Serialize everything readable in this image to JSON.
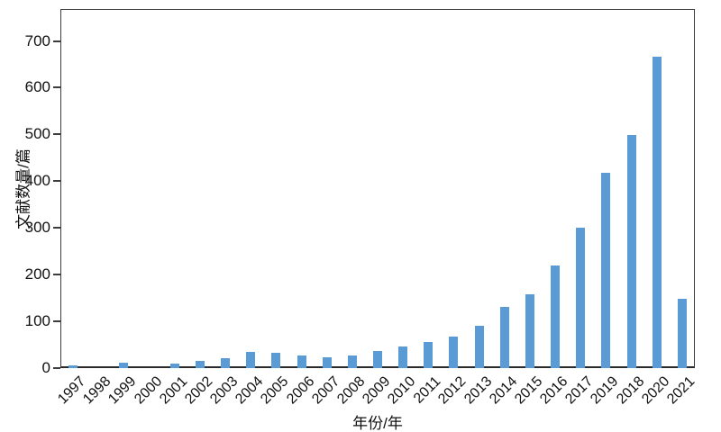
{
  "figure": {
    "bar_color": "#5B9BD5",
    "axis_color": "#3c3c3c",
    "text_color": "#111111",
    "background": "#ffffff"
  },
  "chart_data": {
    "type": "bar",
    "title": "",
    "xlabel": "年份/年",
    "ylabel": "文献数量/篇",
    "categories": [
      "1997",
      "1998",
      "1999",
      "2000",
      "2001",
      "2002",
      "2003",
      "2004",
      "2005",
      "2006",
      "2007",
      "2008",
      "2009",
      "2010",
      "2011",
      "2012",
      "2013",
      "2014",
      "2015",
      "2016",
      "2017",
      "2019",
      "2018",
      "2020",
      "2021"
    ],
    "values": [
      5,
      0,
      11,
      0,
      9,
      16,
      22,
      34,
      32,
      27,
      23,
      26,
      36,
      47,
      56,
      67,
      91,
      130,
      158,
      220,
      300,
      417,
      499,
      667,
      148
    ],
    "yticks": [
      0,
      100,
      200,
      300,
      400,
      500,
      600,
      700
    ],
    "ylim": [
      0,
      768
    ],
    "grid": false,
    "legend_position": "none",
    "bar_color": "#5B9BD5"
  }
}
